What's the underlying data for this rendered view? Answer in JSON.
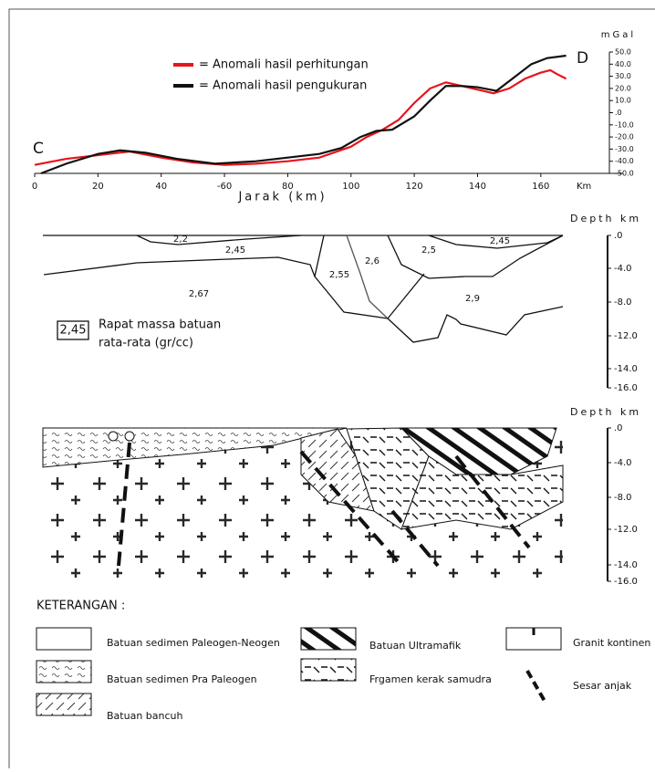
{
  "chart_data": {
    "type": "line",
    "y_unit": "mGal",
    "x_label": "Jarak (km)",
    "x_unit": "Km",
    "annotations": [
      "C",
      "D"
    ],
    "xlim": [
      0,
      186
    ],
    "ylim": [
      -50,
      50
    ],
    "xticks": [
      0,
      20,
      40,
      {
        "value": 60,
        "label": "-60"
      },
      80,
      100,
      120,
      140,
      160
    ],
    "yticks": [
      {
        "value": 50,
        "label": "50.0"
      },
      {
        "value": 40,
        "label": "40.0"
      },
      {
        "value": 30,
        "label": "30.0"
      },
      {
        "value": 20,
        "label": "20.0"
      },
      {
        "value": 10,
        "label": "10.0"
      },
      {
        "value": 0,
        "label": ".0"
      },
      {
        "value": -10,
        "label": "-10.0"
      },
      {
        "value": -20,
        "label": "-20.0"
      },
      {
        "value": -30,
        "label": "-30.0"
      },
      {
        "value": -40,
        "label": "-40.0"
      },
      {
        "value": -50,
        "label": "-50.0"
      }
    ],
    "series": [
      {
        "name": "= Anomali hasil perhitungan",
        "color": "#e8141b",
        "x": [
          0,
          10,
          20,
          30,
          40,
          50,
          60,
          70,
          80,
          90,
          100,
          105,
          110,
          115,
          120,
          125,
          130,
          135,
          140,
          145,
          150,
          155,
          160,
          163,
          165,
          168
        ],
        "values": [
          -43,
          -38,
          -35,
          -32,
          -37,
          -41,
          -43,
          -42,
          -40,
          -37,
          -28,
          -20,
          -14,
          -6,
          8,
          20,
          25,
          22,
          19,
          16,
          20,
          28,
          33,
          35,
          32,
          28
        ]
      },
      {
        "name": "= Anomali hasil pengukuran",
        "color": "#111111",
        "x": [
          2,
          10,
          20,
          27,
          35,
          45,
          57,
          70,
          80,
          90,
          97,
          103,
          108,
          113,
          120,
          125,
          130,
          135,
          140,
          146,
          152,
          157,
          162,
          168
        ],
        "values": [
          -50,
          -42,
          -34,
          -31,
          -33,
          -38,
          -42,
          -40,
          -37,
          -34,
          -29,
          -20,
          -15,
          -14,
          -3,
          10,
          22,
          22,
          21,
          18,
          30,
          40,
          45,
          47
        ]
      }
    ]
  },
  "density_section": {
    "depth_title": "Depth km",
    "depth_ticks": [
      ".0",
      "-4.0",
      "-8.0",
      "-12.0",
      "-14.0",
      "-16.0"
    ],
    "labels": [
      "2,2",
      "2,45",
      "2,45",
      "2,6",
      "2,5",
      "2,55",
      "2,67",
      "2,9"
    ],
    "key_value": "2,45",
    "key_text": [
      "Rapat massa batuan",
      "rata-rata (gr/cc)"
    ]
  },
  "geology_section": {
    "depth_title": "Depth km",
    "depth_ticks": [
      ".0",
      "-4.0",
      "-8.0",
      "-12.0",
      "-14.0",
      "-16.0"
    ]
  },
  "legend": {
    "title": "KETERANGAN :",
    "items": [
      "Batuan sedimen Paleogen-Neogen",
      "Batuan sedimen Pra Paleogen",
      "Batuan bancuh",
      "Batuan Ultramafik",
      "Frgamen kerak samudra",
      "Granit kontinen",
      "Sesar anjak"
    ]
  }
}
